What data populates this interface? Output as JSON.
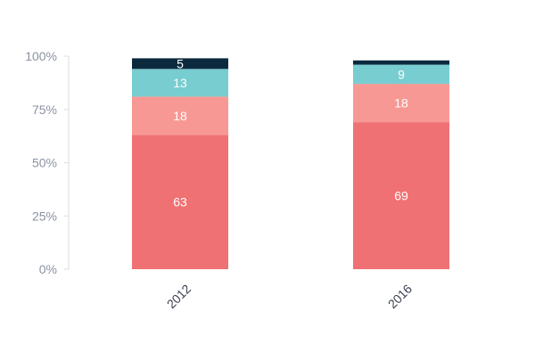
{
  "chart_data": {
    "type": "bar",
    "stacked": true,
    "categories": [
      "2012",
      "2016"
    ],
    "ylim": [
      0,
      100
    ],
    "yticks": [
      "0%",
      "25%",
      "50%",
      "75%",
      "100%"
    ],
    "ytick_values": [
      0,
      25,
      50,
      75,
      100
    ],
    "series": [
      {
        "values": [
          63,
          69
        ],
        "labels": [
          "63",
          "69"
        ],
        "color": "#f07173"
      },
      {
        "values": [
          18,
          18
        ],
        "labels": [
          "18",
          "18"
        ],
        "color": "#f79894"
      },
      {
        "values": [
          13,
          9
        ],
        "labels": [
          "13",
          "9"
        ],
        "color": "#78cdd0"
      },
      {
        "values": [
          5,
          2
        ],
        "labels": [
          "5",
          ""
        ],
        "color": "#0c2a3e"
      }
    ],
    "grid": false,
    "legend": "none"
  }
}
